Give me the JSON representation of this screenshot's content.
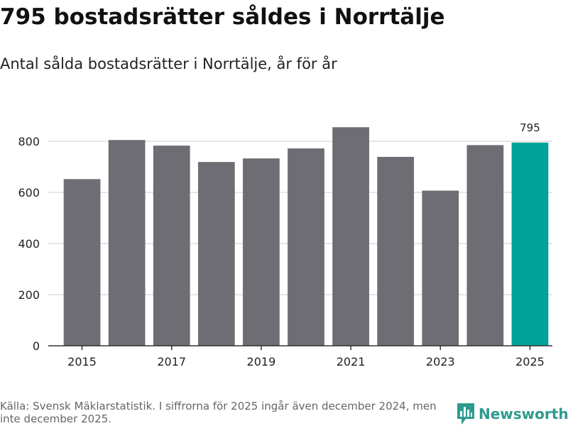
{
  "title": "795 bostadsrätter såldes i Norrtälje",
  "subtitle": "Antal sålda bostadsrätter i Norrtälje, år för år",
  "source": "Källa: Svensk Mäklarstatistik. I siffrorna för 2025 ingår även december 2024, men inte december 2025.",
  "brand": {
    "name": "Newsworthy",
    "icon": "newsworthy-logo-icon",
    "color": "#2e9a8e"
  },
  "colors": {
    "bar": "#6e6d73",
    "highlight": "#00a399",
    "grid": "#dddddd",
    "axis": "#333333"
  },
  "chart_data": {
    "type": "bar",
    "title": "Antal sålda bostadsrätter i Norrtälje, år för år",
    "xlabel": "",
    "ylabel": "",
    "categories": [
      "2015",
      "2016",
      "2017",
      "2018",
      "2019",
      "2020",
      "2021",
      "2022",
      "2023",
      "2024",
      "2025"
    ],
    "values": [
      652,
      805,
      783,
      719,
      733,
      772,
      855,
      739,
      607,
      785,
      795
    ],
    "highlight_index": 10,
    "data_label": "795",
    "ylim": [
      0,
      900
    ],
    "yticks": [
      0,
      200,
      400,
      600,
      800
    ],
    "xtick_labels": [
      "2015",
      "2017",
      "2019",
      "2021",
      "2023",
      "2025"
    ],
    "grid": true
  }
}
